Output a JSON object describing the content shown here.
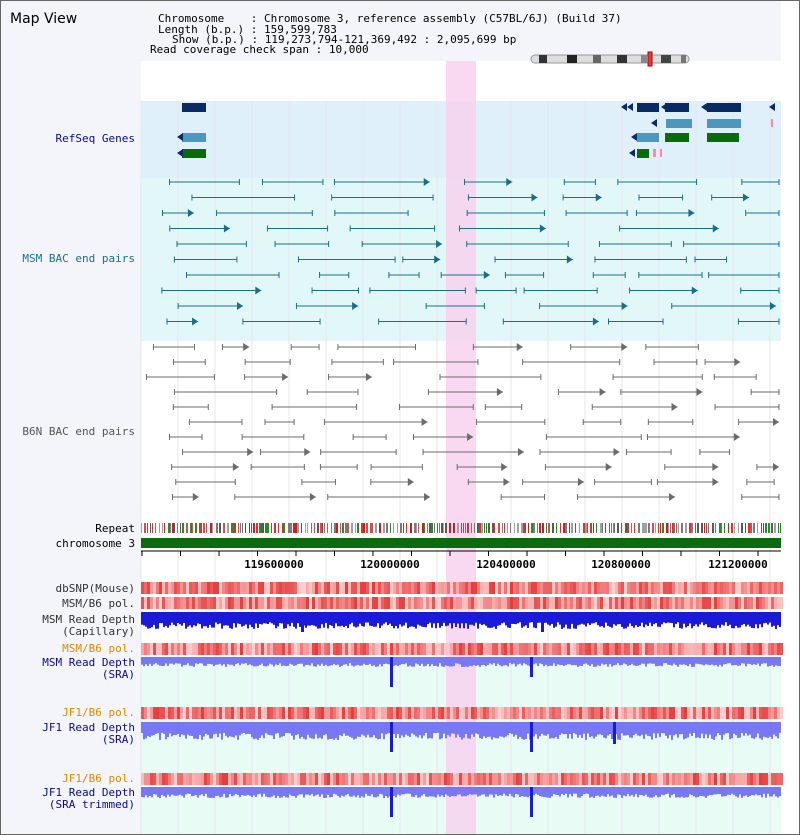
{
  "title": "Map View",
  "info": {
    "chromosome_key": "Chromosome",
    "chromosome_val": "Chromosome 3, reference assembly (C57BL/6J) (Build 37)",
    "length_key": "Length (b.p.)",
    "length_val": "159,599,783",
    "show_key": "Show (b.p.)",
    "show_val": "119,273,794-121,369,492 : 2,095,699 bp",
    "coverage_key": "Read coverage check span",
    "coverage_val": "10,000"
  },
  "tracks": {
    "refseq": "RefSeq Genes",
    "msm_bac": "MSM BAC end pairs",
    "b6n_bac": "B6N BAC end pairs",
    "repeat": "Repeat",
    "chromosome": "chromosome 3",
    "dbsnp": "dbSNP(Mouse)",
    "msm_b6_pol": "MSM/B6 pol.",
    "msm_depth_cap_1": "MSM Read Depth",
    "msm_depth_cap_2": "(Capillary)",
    "msm_b6_pol2": "MSM/B6 pol.",
    "msm_depth_sra_1": "MSM Read Depth",
    "msm_depth_sra_2": "(SRA)",
    "jf1_pol": "JF1/B6 pol.",
    "jf1_depth_1": "JF1 Read Depth",
    "jf1_depth_2": "(SRA)",
    "jf1_pol2": "JF1/B6 pol.",
    "jf1_trim_1": "JF1 Read Depth",
    "jf1_trim_2": "(SRA trimmed)"
  },
  "axis": {
    "ticks": [
      "119600000",
      "120000000",
      "120400000",
      "120800000",
      "121200000"
    ]
  },
  "colors": {
    "refseq_bg": "#dff0fb",
    "msm_bg": "#e2f8f8",
    "highlight": "#f7d2ee",
    "gene_navy": "#0a2a66",
    "gene_blue": "#4a97c0",
    "gene_green": "#0a6b0a",
    "msm_link": "#1a6f87",
    "b6n_link": "#6b6b6b",
    "chromosome_bar": "#0c6b0c",
    "depth_dark": "#1a1ad8",
    "depth_light": "#7878f2",
    "label_orange": "#e08a00",
    "label_navy": "#0a0a8c"
  }
}
